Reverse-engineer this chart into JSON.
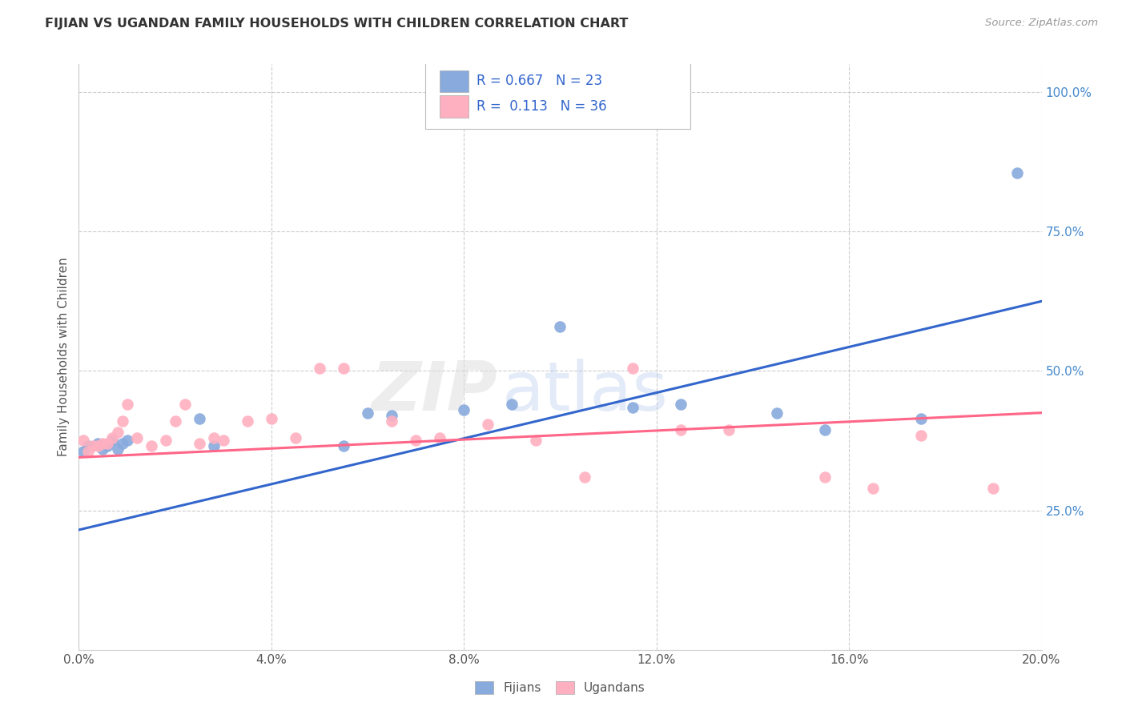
{
  "title": "FIJIAN VS UGANDAN FAMILY HOUSEHOLDS WITH CHILDREN CORRELATION CHART",
  "source": "Source: ZipAtlas.com",
  "ylabel": "Family Households with Children",
  "fijian_R": 0.667,
  "fijian_N": 23,
  "ugandan_R": 0.113,
  "ugandan_N": 36,
  "fijian_color": "#88AADD",
  "ugandan_color": "#FFB0C0",
  "fijian_line_color": "#3366CC",
  "ugandan_line_color": "#FF6688",
  "xmin": 0.0,
  "xmax": 0.2,
  "ymin": 0.0,
  "ymax": 1.05,
  "yticks": [
    0.25,
    0.5,
    0.75,
    1.0
  ],
  "xticks": [
    0.0,
    0.04,
    0.08,
    0.12,
    0.16,
    0.2
  ],
  "fijian_x": [
    0.001,
    0.002,
    0.004,
    0.005,
    0.006,
    0.007,
    0.008,
    0.009,
    0.01,
    0.025,
    0.028,
    0.055,
    0.06,
    0.065,
    0.08,
    0.09,
    0.1,
    0.115,
    0.125,
    0.145,
    0.155,
    0.175,
    0.195
  ],
  "fijian_y": [
    0.355,
    0.365,
    0.37,
    0.36,
    0.365,
    0.375,
    0.36,
    0.37,
    0.375,
    0.415,
    0.365,
    0.365,
    0.425,
    0.42,
    0.43,
    0.44,
    0.58,
    0.435,
    0.44,
    0.425,
    0.395,
    0.415,
    0.855
  ],
  "ugandan_x": [
    0.001,
    0.002,
    0.003,
    0.004,
    0.005,
    0.006,
    0.007,
    0.008,
    0.009,
    0.01,
    0.012,
    0.015,
    0.018,
    0.02,
    0.022,
    0.025,
    0.028,
    0.03,
    0.035,
    0.04,
    0.045,
    0.05,
    0.055,
    0.065,
    0.07,
    0.075,
    0.085,
    0.095,
    0.105,
    0.115,
    0.125,
    0.135,
    0.155,
    0.165,
    0.175,
    0.19
  ],
  "ugandan_y": [
    0.375,
    0.355,
    0.365,
    0.365,
    0.37,
    0.37,
    0.38,
    0.39,
    0.41,
    0.44,
    0.38,
    0.365,
    0.375,
    0.41,
    0.44,
    0.37,
    0.38,
    0.375,
    0.41,
    0.415,
    0.38,
    0.505,
    0.505,
    0.41,
    0.375,
    0.38,
    0.405,
    0.375,
    0.31,
    0.505,
    0.395,
    0.395,
    0.31,
    0.29,
    0.385,
    0.29
  ],
  "fijian_trend_x": [
    0.0,
    0.2
  ],
  "fijian_trend_y": [
    0.215,
    0.625
  ],
  "ugandan_trend_x": [
    0.0,
    0.2
  ],
  "ugandan_trend_y": [
    0.345,
    0.425
  ],
  "watermark_zip": "ZIP",
  "watermark_atlas": "atlas",
  "background_color": "#FFFFFF",
  "grid_color": "#CCCCCC",
  "title_color": "#333333",
  "axis_label_color": "#555555",
  "right_tick_color": "#4488CC",
  "legend_text_color": "#3366CC"
}
